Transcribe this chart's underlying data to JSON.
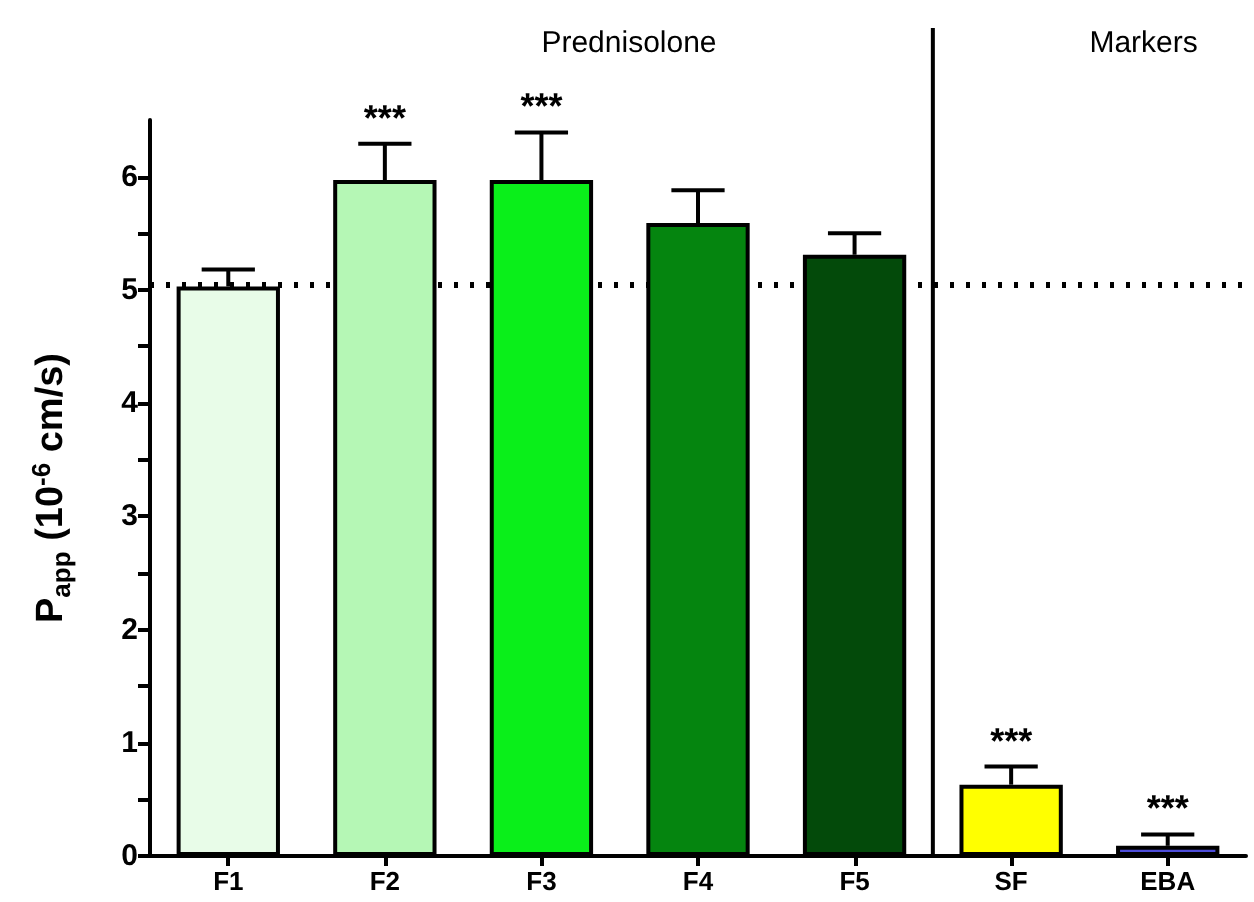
{
  "chart_data": {
    "type": "bar",
    "ylabel": "P$_{app}$ (10$^{-6}$ cm/s)",
    "categories": [
      "F1",
      "F2",
      "F3",
      "F4",
      "F5",
      "SF",
      "EBA"
    ],
    "values": [
      5.03,
      5.97,
      5.97,
      5.59,
      5.31,
      0.63,
      0.09
    ],
    "colors": [
      "#e8fce8",
      "#b5f7b5",
      "#0aef1a",
      "#05850f",
      "#034a0a",
      "#ffff00",
      "#4d4dd9"
    ],
    "errors": [
      [
        5.03,
        5.18
      ],
      [
        5.97,
        6.29
      ],
      [
        5.97,
        6.39
      ],
      [
        5.59,
        5.88
      ],
      [
        5.31,
        5.5
      ],
      [
        0.63,
        0.79
      ],
      [
        0.09,
        0.19
      ]
    ],
    "ylim": [
      0,
      6.5
    ],
    "yticks": [
      0,
      {
        "value": 0.5,
        "label": null
      },
      1,
      {
        "value": 1.5,
        "label": null
      },
      2,
      {
        "value": 2.5,
        "label": null
      },
      3,
      {
        "value": 3.5,
        "label": null
      },
      4,
      {
        "value": 4.5,
        "label": null
      },
      5,
      {
        "value": 5.5,
        "label": null
      },
      6
    ],
    "ref_lines": [
      {
        "axis": "y",
        "value": 5.05,
        "color": "#000000",
        "line_style": "dotted"
      }
    ],
    "annotations": [
      "Prednisolone",
      "Markers",
      {
        "text": "***",
        "x": "F2",
        "y": 6.29
      },
      {
        "text": "***",
        "x": "F3",
        "y": 6.39
      },
      {
        "text": "***",
        "x": "SF",
        "y": 0.79
      },
      {
        "text": "***",
        "x": "EBA",
        "y": 0.19
      }
    ],
    "grid": false
  }
}
